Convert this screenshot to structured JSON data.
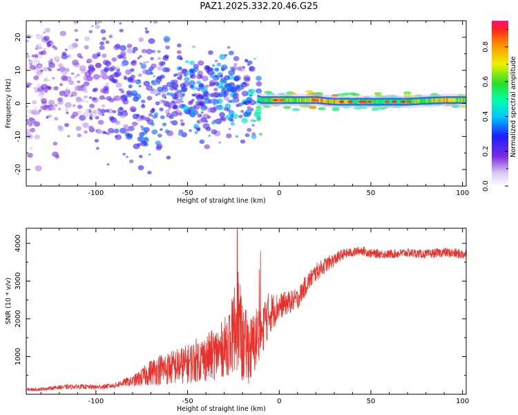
{
  "title": "PAZ1.2025.332.20.46.G25",
  "colors": {
    "snr_line": "#e8312b",
    "axes": "#000000"
  },
  "chart_data": [
    {
      "type": "heatmap",
      "title": "PAZ1.2025.332.20.46.G25",
      "xlabel": "Height of straight line (km)",
      "ylabel": "Frequency (Hz)",
      "xlim": [
        -138,
        102
      ],
      "ylim": [
        -25,
        25
      ],
      "x_ticks": [
        -100,
        -50,
        0,
        50,
        100
      ],
      "y_ticks": [
        -20,
        -10,
        0,
        10,
        20
      ],
      "colorbar": {
        "label": "Normalized spectral amplitude",
        "range": [
          0,
          0.95
        ],
        "ticks": [
          0.0,
          0.2,
          0.4,
          0.6,
          0.8
        ],
        "tick_labels": [
          "0.0",
          "0.2",
          "0.4",
          "0.6",
          "0.8"
        ]
      },
      "description_points": {
        "x": [
          -135,
          -120,
          -110,
          -100,
          -90,
          -80,
          -70,
          -60,
          -50,
          -40,
          -30,
          -20,
          -10,
          0,
          10,
          20,
          30,
          40,
          50,
          60,
          70,
          80,
          90,
          100
        ],
        "center_freq": [
          8,
          5,
          6,
          5,
          6,
          4,
          2,
          1,
          3,
          2,
          3,
          3,
          1,
          1,
          1,
          1,
          0.5,
          0.5,
          0.5,
          0.5,
          0.5,
          0.8,
          1,
          1
        ],
        "peak_amp": [
          0.15,
          0.2,
          0.2,
          0.22,
          0.25,
          0.28,
          0.3,
          0.3,
          0.35,
          0.3,
          0.35,
          0.35,
          0.5,
          0.7,
          0.6,
          0.75,
          0.75,
          0.6,
          0.55,
          0.55,
          0.6,
          0.6,
          0.75,
          0.6
        ]
      }
    },
    {
      "type": "line",
      "xlabel": "Height of straight line (km)",
      "ylabel": "SNR (10 * v/v)",
      "xlim": [
        -138,
        102
      ],
      "ylim": [
        0,
        4400
      ],
      "x_ticks": [
        -100,
        -50,
        0,
        50,
        100
      ],
      "y_ticks": [
        1000,
        2000,
        3000,
        4000
      ],
      "series": [
        {
          "name": "SNR",
          "x": [
            -138,
            -130,
            -120,
            -110,
            -100,
            -90,
            -85,
            -80,
            -75,
            -70,
            -65,
            -60,
            -55,
            -50,
            -45,
            -40,
            -35,
            -30,
            -25,
            -23,
            -20,
            -15,
            -10,
            -5,
            0,
            5,
            10,
            15,
            20,
            25,
            30,
            35,
            40,
            45,
            50,
            60,
            70,
            80,
            90,
            100,
            102
          ],
          "values": [
            120,
            130,
            180,
            200,
            180,
            220,
            300,
            330,
            420,
            550,
            620,
            650,
            700,
            750,
            850,
            900,
            1000,
            1150,
            1500,
            2000,
            1200,
            1100,
            1700,
            2100,
            2300,
            2400,
            2500,
            2900,
            3200,
            3400,
            3550,
            3700,
            3750,
            3800,
            3720,
            3700,
            3740,
            3700,
            3750,
            3700,
            3700
          ],
          "noise_amplitude": [
            60,
            60,
            80,
            90,
            90,
            100,
            150,
            200,
            350,
            500,
            600,
            650,
            700,
            750,
            850,
            900,
            1000,
            1100,
            1500,
            2200,
            1500,
            1300,
            1200,
            800,
            500,
            450,
            400,
            380,
            350,
            300,
            250,
            200,
            180,
            180,
            170,
            170,
            170,
            170,
            180,
            200,
            200
          ]
        }
      ]
    }
  ]
}
